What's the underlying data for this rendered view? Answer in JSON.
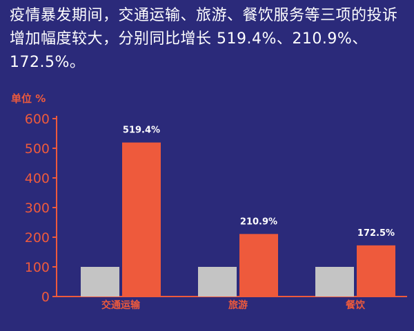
{
  "headline": "疫情暴发期间，交通运输、旅游、餐饮服务等三项的投诉增加幅度较大，分别同比增长 519.4%、210.9%、172.5%。",
  "colors": {
    "background": "#2b2a7a",
    "accent": "#ee5a3c",
    "baseline_bar": "#c4c4c4",
    "text": "#ffffff"
  },
  "chart_data": {
    "type": "bar",
    "unit_label": "单位 %",
    "categories": [
      "交通运输",
      "旅游",
      "餐饮"
    ],
    "series": [
      {
        "values": [
          100,
          100,
          100
        ],
        "color": "#c4c4c4"
      },
      {
        "values": [
          519.4,
          210.9,
          172.5
        ],
        "color": "#ee5a3c"
      }
    ],
    "data_labels": [
      "519.4%",
      "210.9%",
      "172.5%"
    ],
    "yticks": [
      0,
      100,
      200,
      300,
      400,
      500,
      600
    ],
    "ylim": [
      0,
      600
    ],
    "grid": false,
    "legend": "none"
  }
}
